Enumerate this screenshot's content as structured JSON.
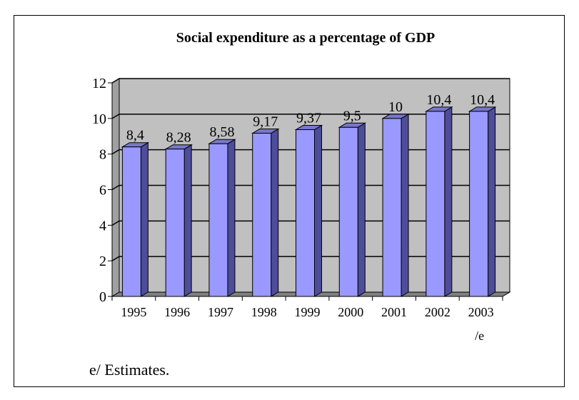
{
  "chart_data": {
    "type": "bar",
    "title": "Social expenditure as a percentage of GDP",
    "xlabel": "",
    "ylabel": "",
    "categories": [
      "1995",
      "1996",
      "1997",
      "1998",
      "1999",
      "2000",
      "2001",
      "2002",
      "2003"
    ],
    "category_suffixes": [
      "",
      "",
      "",
      "",
      "",
      "",
      "",
      "",
      "/e"
    ],
    "values": [
      8.4,
      8.28,
      8.58,
      9.17,
      9.37,
      9.5,
      10,
      10.4,
      10.4
    ],
    "data_labels": [
      "8,4",
      "8,28",
      "8,58",
      "9,17",
      "9,37",
      "9,5",
      "10",
      "10,4",
      "10,4"
    ],
    "ylim": [
      0,
      12
    ],
    "yticks": [
      0,
      2,
      4,
      6,
      8,
      10,
      12
    ],
    "grid": true,
    "three_d": true,
    "colors": {
      "bar_front": "#9999ff",
      "bar_side": "#4d4d99",
      "bar_top": "#7777cc",
      "back_wall": "#c0c0c0",
      "side_wall": "#a0a0a0",
      "floor": "#808080"
    }
  },
  "footnote": "e/ Estimates."
}
